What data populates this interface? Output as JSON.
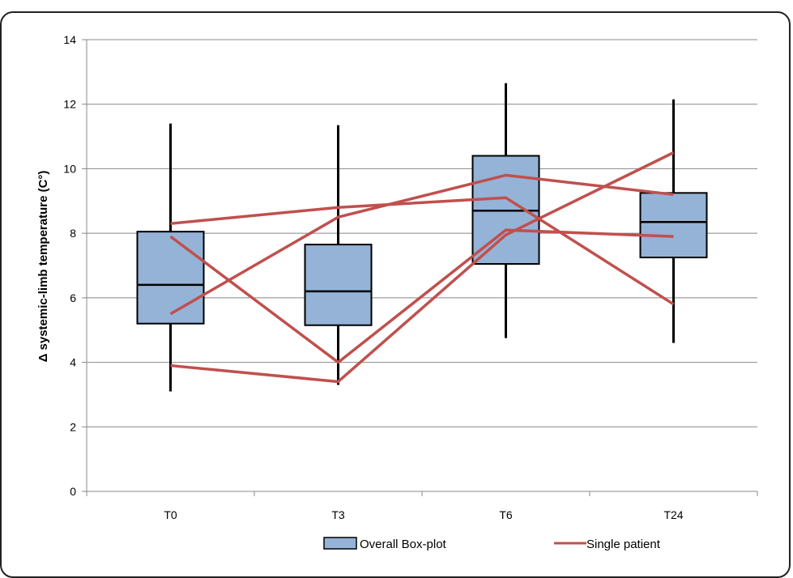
{
  "chart_data": {
    "type": "boxplot",
    "title": "",
    "xlabel": "",
    "ylabel": "Δ systemic-limb temperature (C°)",
    "ylim": [
      0,
      14
    ],
    "yticks": [
      0,
      2,
      4,
      6,
      8,
      10,
      12,
      14
    ],
    "grid": true,
    "categories": [
      "T0",
      "T3",
      "T6",
      "T24"
    ],
    "boxes": [
      {
        "category": "T0",
        "min": 3.1,
        "q1": 5.2,
        "median": 6.4,
        "q3": 8.05,
        "max": 11.4
      },
      {
        "category": "T3",
        "min": 3.3,
        "q1": 5.15,
        "median": 6.2,
        "q3": 7.65,
        "max": 11.35
      },
      {
        "category": "T6",
        "min": 4.75,
        "q1": 7.05,
        "median": 8.7,
        "q3": 10.4,
        "max": 12.65
      },
      {
        "category": "T24",
        "min": 4.6,
        "q1": 7.25,
        "median": 8.35,
        "q3": 9.25,
        "max": 12.15
      }
    ],
    "series": [
      {
        "name": "Single patient",
        "values": [
          8.3,
          8.8,
          9.1,
          5.8
        ]
      },
      {
        "name": "Single patient",
        "values": [
          7.9,
          4.0,
          8.1,
          7.9
        ]
      },
      {
        "name": "Single patient",
        "values": [
          5.5,
          8.5,
          9.8,
          9.2
        ]
      },
      {
        "name": "Single patient",
        "values": [
          3.9,
          3.4,
          7.95,
          10.5
        ]
      }
    ],
    "legend": {
      "position": "bottom",
      "items": [
        {
          "label": "Overall Box-plot",
          "kind": "box"
        },
        {
          "label": "Single patient",
          "kind": "line"
        }
      ]
    },
    "colors": {
      "box_fill": "#95b3d7",
      "box_edge": "#000000",
      "line": "#c0504d",
      "grid": "#888888"
    }
  }
}
